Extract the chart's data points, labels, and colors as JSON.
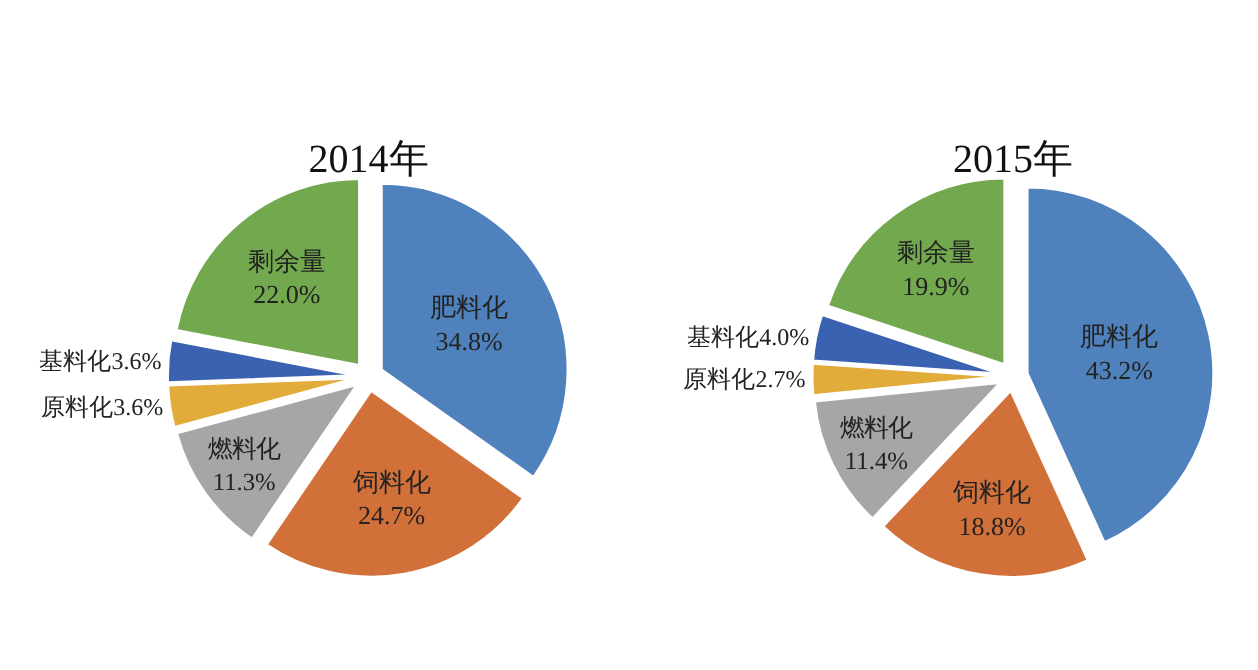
{
  "chart_data": [
    {
      "type": "pie",
      "title": "2014年",
      "categories": [
        "肥料化",
        "饲料化",
        "燃料化",
        "原料化",
        "基料化",
        "剩余量"
      ],
      "values": [
        34.8,
        24.7,
        11.3,
        3.6,
        3.6,
        22.0
      ],
      "value_labels": [
        "34.8%",
        "24.7%",
        "11.3%",
        "3.6%",
        "3.6%",
        "22.0%"
      ],
      "colors": [
        "#4f81bd",
        "#d2703a",
        "#a6a6a6",
        "#e2ac3a",
        "#3b62b0",
        "#72a84e"
      ]
    },
    {
      "type": "pie",
      "title": "2015年",
      "categories": [
        "肥料化",
        "饲料化",
        "燃料化",
        "原料化",
        "基料化",
        "剩余量"
      ],
      "values": [
        43.2,
        18.8,
        11.4,
        2.7,
        4.0,
        19.9
      ],
      "value_labels": [
        "43.2%",
        "18.8%",
        "11.4%",
        "2.7%",
        "4.0%",
        "19.9%"
      ],
      "colors": [
        "#4f81bd",
        "#d2703a",
        "#a6a6a6",
        "#e2ac3a",
        "#3b62b0",
        "#72a84e"
      ]
    }
  ]
}
